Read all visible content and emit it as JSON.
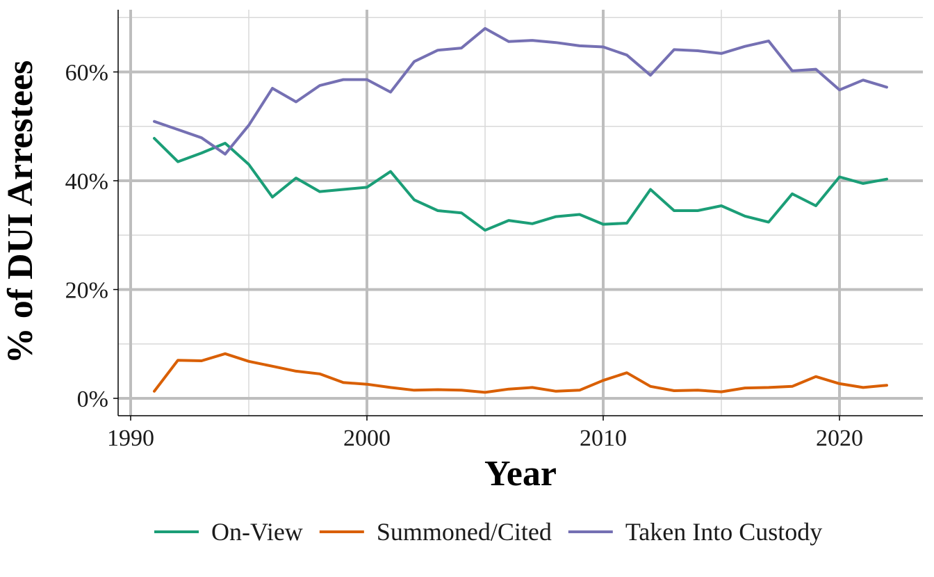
{
  "chart_data": {
    "type": "line",
    "title": "",
    "xlabel": "Year",
    "ylabel": "% of DUI Arrestees",
    "xlim": [
      1990,
      2023
    ],
    "ylim": [
      0,
      72
    ],
    "x_ticks": [
      1990,
      2000,
      2010,
      2020
    ],
    "x_tick_labels": [
      "1990",
      "2000",
      "2010",
      "2020"
    ],
    "y_ticks": [
      0,
      20,
      40,
      60
    ],
    "y_tick_labels": [
      "0%",
      "20%",
      "40%",
      "60%"
    ],
    "grid": true,
    "legend_position": "bottom",
    "x": [
      1991,
      1992,
      1993,
      1994,
      1995,
      1996,
      1997,
      1998,
      1999,
      2000,
      2001,
      2002,
      2003,
      2004,
      2005,
      2006,
      2007,
      2008,
      2009,
      2010,
      2011,
      2012,
      2013,
      2014,
      2015,
      2016,
      2017,
      2018,
      2019,
      2020,
      2021,
      2022
    ],
    "series": [
      {
        "name": "On-View",
        "color": "#1b9e77",
        "values": [
          47.8,
          43.5,
          45.1,
          46.9,
          43.0,
          37.0,
          40.5,
          38.0,
          38.4,
          38.8,
          41.7,
          36.5,
          34.5,
          34.1,
          30.9,
          32.7,
          32.1,
          33.4,
          33.8,
          32.0,
          32.2,
          38.4,
          34.5,
          34.5,
          35.4,
          33.5,
          32.4,
          37.6,
          35.4,
          40.7,
          39.5,
          40.3
        ]
      },
      {
        "name": "Summoned/Cited",
        "color": "#d95f02",
        "values": [
          1.3,
          7.0,
          6.9,
          8.2,
          6.8,
          5.9,
          5.0,
          4.5,
          2.9,
          2.6,
          2.0,
          1.5,
          1.6,
          1.5,
          1.1,
          1.7,
          2.0,
          1.3,
          1.5,
          3.3,
          4.7,
          2.2,
          1.4,
          1.5,
          1.2,
          1.9,
          2.0,
          2.2,
          4.0,
          2.7,
          2.0,
          2.4
        ]
      },
      {
        "name": "Taken Into Custody",
        "color": "#7570b3",
        "values": [
          50.9,
          49.4,
          47.9,
          44.9,
          50.2,
          57.0,
          54.5,
          57.5,
          58.6,
          58.6,
          56.3,
          61.9,
          64.0,
          64.4,
          68.0,
          65.6,
          65.8,
          65.4,
          64.8,
          64.6,
          63.1,
          59.4,
          64.1,
          63.9,
          63.4,
          64.7,
          65.7,
          60.2,
          60.5,
          56.7,
          58.5,
          57.2
        ]
      }
    ]
  }
}
